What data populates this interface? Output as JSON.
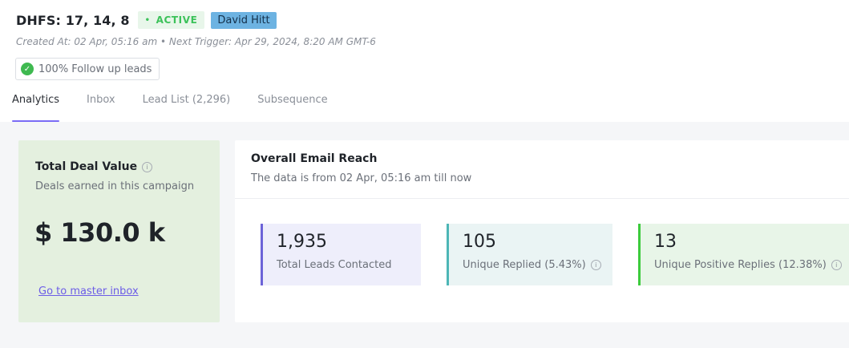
{
  "campaign": {
    "title": "DHFS: 17, 14, 8",
    "status": "ACTIVE",
    "owner": "David Hitt",
    "meta": "Created At: 02 Apr, 05:16 am • Next Trigger: Apr 29, 2024, 8:20 AM GMT-6",
    "follow_up_chip": "100% Follow up leads"
  },
  "tabs": [
    {
      "label": "Analytics",
      "active": true
    },
    {
      "label": "Inbox",
      "active": false
    },
    {
      "label": "Lead List (2,296)",
      "active": false
    },
    {
      "label": "Subsequence",
      "active": false
    }
  ],
  "deal_card": {
    "title": "Total Deal Value",
    "subtitle": "Deals earned in this campaign",
    "value": "$ 130.0 k",
    "link": "Go to master inbox"
  },
  "reach_card": {
    "title": "Overall Email Reach",
    "subtitle": "The data is from 02 Apr, 05:16 am till now",
    "stats": [
      {
        "value": "1,935",
        "label": "Total Leads Contacted",
        "info": false
      },
      {
        "value": "105",
        "label": "Unique Replied (5.43%)",
        "info": true
      },
      {
        "value": "13",
        "label": "Unique Positive Replies (12.38%)",
        "info": true
      }
    ]
  },
  "icons": {
    "info": "i",
    "check": "✓",
    "dot": "•"
  },
  "colors": {
    "accent": "#7b6cf6",
    "active_green": "#3cc25a",
    "owner_blue": "#6db3e2",
    "deal_bg": "#e4f0df",
    "stat1_bar": "#6c63d8",
    "stat2_bar": "#4db6b6",
    "stat3_bar": "#3ccb3c"
  }
}
